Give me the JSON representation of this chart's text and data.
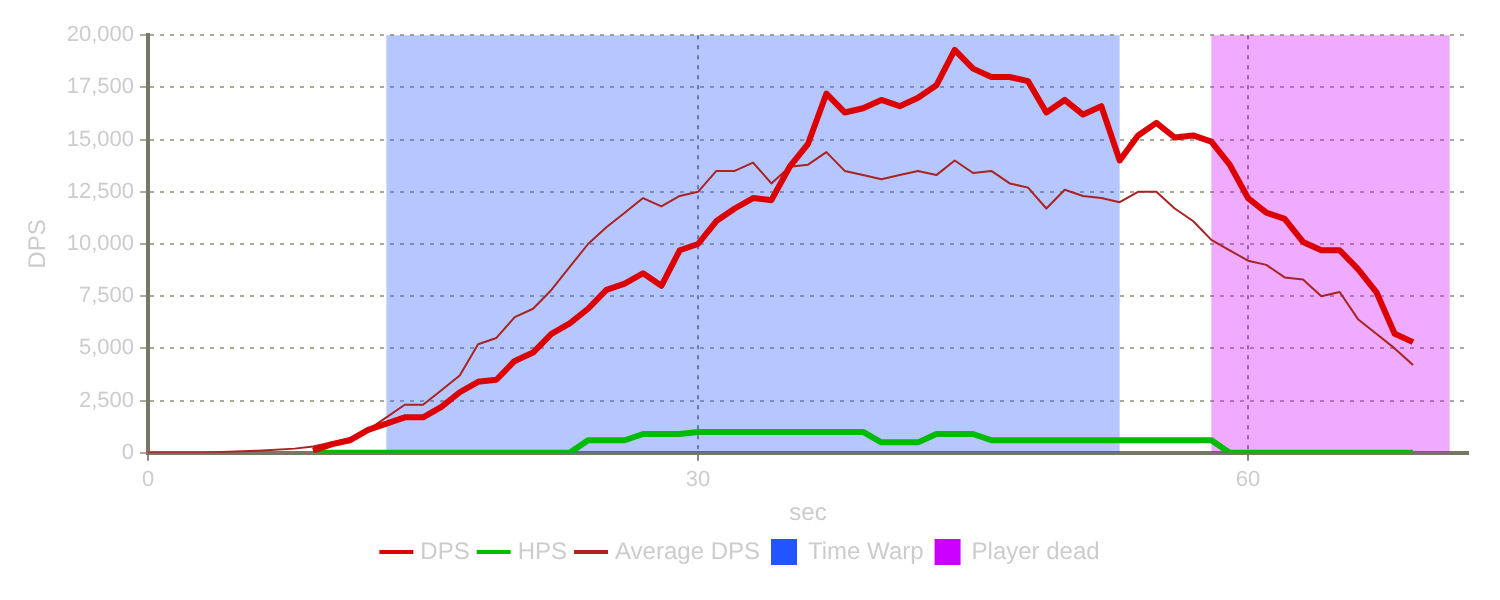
{
  "chart_data": {
    "type": "line",
    "xlabel": "sec",
    "ylabel": "DPS",
    "xlim": [
      0,
      72
    ],
    "xticks": [
      0,
      30,
      60
    ],
    "ylim": [
      0,
      20000
    ],
    "yticks": [
      {
        "value": 0,
        "label": "0"
      },
      {
        "value": 2500,
        "label": "2,500"
      },
      {
        "value": 5000,
        "label": "5,000"
      },
      {
        "value": 7500,
        "label": "7,500"
      },
      {
        "value": 10000,
        "label": "10,000"
      },
      {
        "value": 12500,
        "label": "12,500"
      },
      {
        "value": 15000,
        "label": "15,000"
      },
      {
        "value": 17500,
        "label": "17,500"
      },
      {
        "value": 20000,
        "label": "20,000"
      }
    ],
    "grid": true,
    "legend": "bottom",
    "series": [
      {
        "name": "DPS",
        "color": "#dd0000",
        "x": [
          9,
          10,
          11,
          12,
          13,
          14,
          15,
          16,
          17,
          18,
          19,
          20,
          21,
          22,
          23,
          24,
          25,
          26,
          27,
          28,
          29,
          30,
          31,
          32,
          33,
          34,
          35,
          36,
          37,
          38,
          39,
          40,
          41,
          42,
          43,
          44,
          45,
          46,
          47,
          48,
          49,
          50,
          51,
          52,
          53,
          54,
          55,
          56,
          57,
          58,
          59,
          60,
          61,
          62,
          63,
          64,
          65,
          66,
          67,
          68,
          69
        ],
        "values": [
          100,
          400,
          600,
          1100,
          1400,
          1700,
          1700,
          2200,
          2900,
          3400,
          3500,
          4400,
          4800,
          5700,
          6200,
          6900,
          7800,
          8100,
          8600,
          8000,
          9700,
          10000,
          11100,
          11700,
          12200,
          12100,
          13700,
          14800,
          17200,
          16300,
          16500,
          16900,
          16600,
          17000,
          17600,
          19300,
          18400,
          18000,
          18000,
          17800,
          16300,
          16900,
          16200,
          16600,
          14000,
          15200,
          15800,
          15100,
          15200,
          14900,
          13800,
          12200,
          11500,
          11200,
          10100,
          9700,
          9700,
          8800,
          7700,
          5700,
          5300
        ]
      },
      {
        "name": "HPS",
        "color": "#00bb00",
        "x": [
          9,
          10,
          11,
          12,
          13,
          14,
          15,
          16,
          17,
          18,
          19,
          20,
          21,
          22,
          23,
          24,
          25,
          26,
          27,
          28,
          29,
          30,
          31,
          32,
          33,
          34,
          35,
          36,
          37,
          38,
          39,
          40,
          41,
          42,
          43,
          44,
          45,
          46,
          47,
          48,
          49,
          50,
          51,
          52,
          53,
          54,
          55,
          56,
          57,
          58,
          59,
          60,
          61,
          62,
          63,
          64,
          65,
          66,
          67,
          68,
          69
        ],
        "values": [
          0,
          0,
          0,
          0,
          0,
          0,
          0,
          0,
          0,
          0,
          0,
          0,
          0,
          0,
          0,
          600,
          600,
          600,
          900,
          900,
          900,
          1000,
          1000,
          1000,
          1000,
          1000,
          1000,
          1000,
          1000,
          1000,
          1000,
          500,
          500,
          500,
          900,
          900,
          900,
          600,
          600,
          600,
          600,
          600,
          600,
          600,
          600,
          600,
          600,
          600,
          600,
          600,
          0,
          0,
          0,
          0,
          0,
          0,
          0,
          0,
          0,
          0,
          0
        ]
      },
      {
        "name": "Average DPS",
        "color": "#aa2222",
        "x": [
          0,
          3,
          6,
          8,
          9,
          10,
          11,
          12,
          13,
          14,
          15,
          16,
          17,
          18,
          19,
          20,
          21,
          22,
          23,
          24,
          25,
          26,
          27,
          28,
          29,
          30,
          31,
          32,
          33,
          34,
          35,
          36,
          37,
          38,
          39,
          40,
          41,
          42,
          43,
          44,
          45,
          46,
          47,
          48,
          49,
          50,
          51,
          52,
          53,
          54,
          55,
          56,
          57,
          58,
          59,
          60,
          61,
          62,
          63,
          64,
          65,
          66,
          67,
          68,
          69
        ],
        "values": [
          0,
          0,
          100,
          200,
          300,
          500,
          700,
          1100,
          1700,
          2300,
          2300,
          3000,
          3700,
          5200,
          5500,
          6500,
          6900,
          7800,
          8900,
          10000,
          10800,
          11500,
          12200,
          11800,
          12300,
          12500,
          13500,
          13500,
          13900,
          12900,
          13700,
          13800,
          14400,
          13500,
          13300,
          13100,
          13300,
          13500,
          13300,
          14000,
          13400,
          13500,
          12900,
          12700,
          11700,
          12600,
          12300,
          12200,
          12000,
          12500,
          12500,
          11700,
          11100,
          10200,
          9700,
          9200,
          9000,
          8400,
          8300,
          7500,
          7700,
          6400,
          5700,
          5000,
          4200
        ]
      }
    ],
    "bands": [
      {
        "axis": "x",
        "from": 13,
        "to": 53,
        "label": "Time Warp",
        "color": "#2255ff"
      },
      {
        "axis": "x",
        "from": 58,
        "to": 71,
        "label": "Player dead",
        "color": "#cc00ff"
      }
    ]
  }
}
